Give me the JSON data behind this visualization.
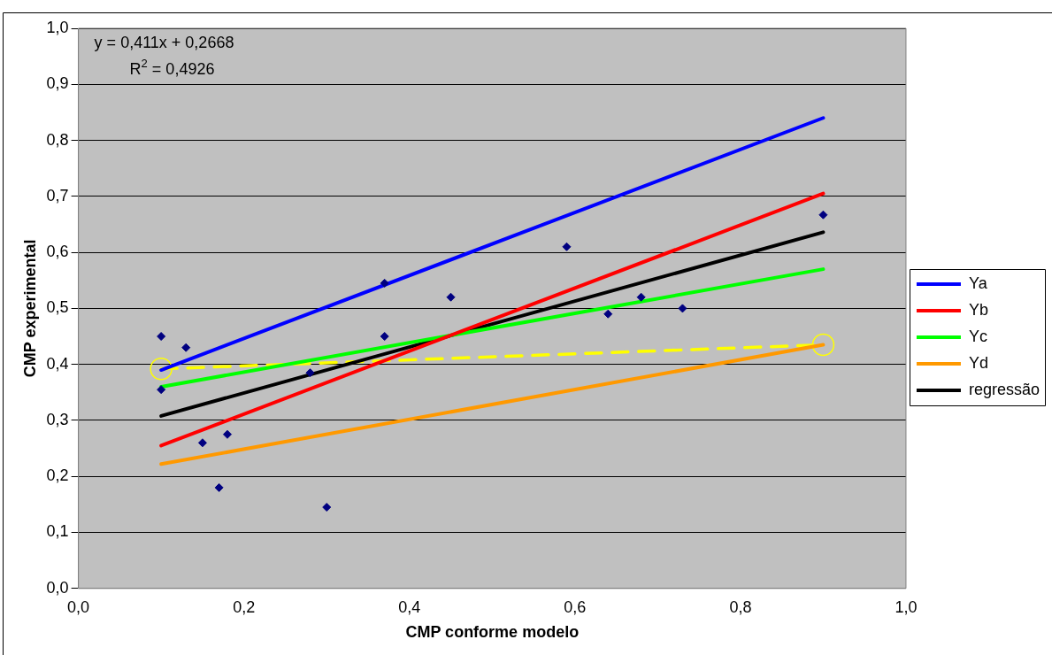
{
  "chart_data": {
    "type": "scatter",
    "xlabel": "CMP conforme modelo",
    "ylabel": "CMP experimental",
    "xlim": [
      0,
      1
    ],
    "ylim": [
      0,
      1
    ],
    "xticks": [
      {
        "value": 0,
        "label": "0,0"
      },
      {
        "value": 0.2,
        "label": "0,2"
      },
      {
        "value": 0.4,
        "label": "0,4"
      },
      {
        "value": 0.6,
        "label": "0,6"
      },
      {
        "value": 0.8,
        "label": "0,8"
      },
      {
        "value": 1,
        "label": "1,0"
      }
    ],
    "yticks": [
      {
        "value": 0,
        "label": "0,0"
      },
      {
        "value": 0.1,
        "label": "0,1"
      },
      {
        "value": 0.2,
        "label": "0,2"
      },
      {
        "value": 0.3,
        "label": "0,3"
      },
      {
        "value": 0.4,
        "label": "0,4"
      },
      {
        "value": 0.5,
        "label": "0,5"
      },
      {
        "value": 0.6,
        "label": "0,6"
      },
      {
        "value": 0.7,
        "label": "0,7"
      },
      {
        "value": 0.8,
        "label": "0,8"
      },
      {
        "value": 0.9,
        "label": "0,9"
      },
      {
        "value": 1,
        "label": "1,0"
      }
    ],
    "grid": "y",
    "legend": "right",
    "marker": "diamond",
    "annotations": [
      "y = 0,411x + 0,2668",
      "R$^{2}$ = 0,4926"
    ],
    "series": [
      {
        "color": "#000080",
        "x": [
          0.1,
          0.1,
          0.13,
          0.15,
          0.17,
          0.18,
          0.28,
          0.3,
          0.37,
          0.37,
          0.45,
          0.59,
          0.64,
          0.68,
          0.73,
          0.9
        ],
        "values": [
          0.45,
          0.355,
          0.43,
          0.26,
          0.18,
          0.275,
          0.385,
          0.145,
          0.545,
          0.45,
          0.52,
          0.61,
          0.49,
          0.52,
          0.5,
          0.667
        ]
      },
      {
        "type": "line",
        "name": "Ya",
        "color": "#0000ff",
        "marker": "none",
        "x": [
          0.1,
          0.9
        ],
        "values": [
          0.39,
          0.84
        ]
      },
      {
        "type": "line",
        "name": "Yb",
        "color": "#ff0000",
        "marker": "none",
        "x": [
          0.1,
          0.9
        ],
        "values": [
          0.255,
          0.705
        ]
      },
      {
        "type": "line",
        "name": "Yc",
        "color": "#00ff00",
        "marker": "none",
        "x": [
          0.1,
          0.9
        ],
        "values": [
          0.36,
          0.57
        ]
      },
      {
        "type": "line",
        "name": "Yd",
        "color": "#ff9900",
        "marker": "none",
        "x": [
          0.1,
          0.9
        ],
        "values": [
          0.222,
          0.435
        ]
      },
      {
        "type": "line",
        "name": "regressão",
        "color": "#000000",
        "marker": "none",
        "x": [
          0.1,
          0.9
        ],
        "values": [
          0.308,
          0.636
        ]
      },
      {
        "type": "line",
        "color": "#ffff00",
        "marker": "circle",
        "line_style": "dashed",
        "x": [
          0.1,
          0.9
        ],
        "values": [
          0.392,
          0.435
        ]
      }
    ]
  }
}
